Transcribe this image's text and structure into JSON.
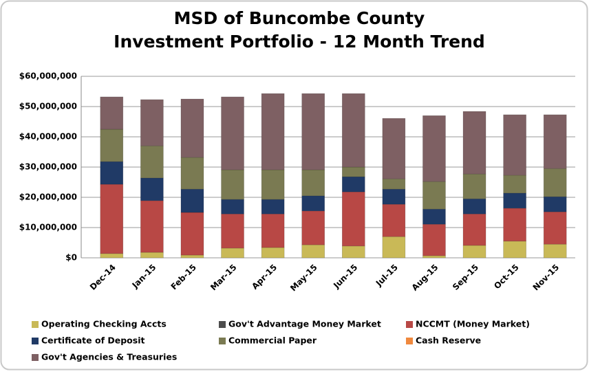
{
  "chart_data": {
    "type": "stacked_bar",
    "title_lines": [
      "MSD of Buncombe County",
      "Investment Portfolio - 12 Month Trend"
    ],
    "categories": [
      "Dec-14",
      "Jan-15",
      "Feb-15",
      "Mar-15",
      "Apr-15",
      "May-15",
      "Jun-15",
      "Jul-15",
      "Aug-15",
      "Sep-15",
      "Oct-15",
      "Nov-15"
    ],
    "series": [
      {
        "name": "Operating Checking Accts",
        "color": "#c9b957",
        "values": [
          1400000,
          1800000,
          900000,
          3200000,
          3400000,
          4300000,
          3900000,
          7000000,
          700000,
          4100000,
          5500000,
          4500000
        ]
      },
      {
        "name": "Gov't Advantage Money Market",
        "color": "#4d4d4d",
        "values": [
          0,
          0,
          0,
          0,
          0,
          0,
          0,
          0,
          0,
          0,
          0,
          0
        ]
      },
      {
        "name": "NCCMT (Money Market)",
        "color": "#b84845",
        "values": [
          22900000,
          17100000,
          14100000,
          11300000,
          11100000,
          11200000,
          17900000,
          10700000,
          10400000,
          10400000,
          10900000,
          10700000
        ]
      },
      {
        "name": "Certificate of Deposit",
        "color": "#203a66",
        "values": [
          7500000,
          7500000,
          7700000,
          4800000,
          4800000,
          5000000,
          5000000,
          5000000,
          5000000,
          5000000,
          5000000,
          5000000
        ]
      },
      {
        "name": "Commercial Paper",
        "color": "#7a7a52",
        "values": [
          10700000,
          10600000,
          10500000,
          9800000,
          9800000,
          8600000,
          3200000,
          3400000,
          9100000,
          8200000,
          5900000,
          9300000
        ]
      },
      {
        "name": "Cash  Reserve",
        "color": "#f0893e",
        "values": [
          0,
          0,
          0,
          0,
          0,
          0,
          0,
          0,
          0,
          0,
          0,
          0
        ]
      },
      {
        "name": "Gov't Agencies & Treasuries",
        "color": "#7e6063",
        "values": [
          10700000,
          15300000,
          19300000,
          24100000,
          25200000,
          25200000,
          24300000,
          20000000,
          21800000,
          20700000,
          20000000,
          17800000
        ]
      }
    ],
    "ylim": [
      0,
      60000000
    ],
    "yticks": [
      {
        "value": 0,
        "label": "$0"
      },
      {
        "value": 10000000,
        "label": "$10,000,000"
      },
      {
        "value": 20000000,
        "label": "$20,000,000"
      },
      {
        "value": 30000000,
        "label": "$30,000,000"
      },
      {
        "value": 40000000,
        "label": "$40,000,000"
      },
      {
        "value": 50000000,
        "label": "$50,000,000"
      },
      {
        "value": 60000000,
        "label": "$60,000,000"
      }
    ],
    "grid": true
  }
}
